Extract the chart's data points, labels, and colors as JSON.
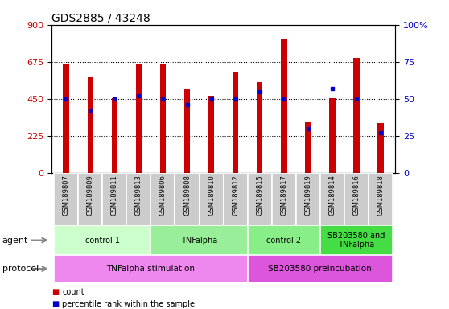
{
  "title": "GDS2885 / 43248",
  "samples": [
    "GSM189807",
    "GSM189809",
    "GSM189811",
    "GSM189813",
    "GSM189806",
    "GSM189808",
    "GSM189810",
    "GSM189812",
    "GSM189815",
    "GSM189817",
    "GSM189819",
    "GSM189814",
    "GSM189816",
    "GSM189818"
  ],
  "counts": [
    660,
    580,
    455,
    665,
    660,
    510,
    470,
    615,
    550,
    810,
    310,
    455,
    700,
    305
  ],
  "percentile_ranks": [
    50,
    42,
    50,
    52,
    50,
    46,
    50,
    50,
    55,
    50,
    30,
    57,
    50,
    27
  ],
  "ylim_left": [
    0,
    900
  ],
  "ylim_right": [
    0,
    100
  ],
  "yticks_left": [
    0,
    225,
    450,
    675,
    900
  ],
  "yticks_right": [
    0,
    25,
    50,
    75,
    100
  ],
  "bar_color": "#cc0000",
  "dot_color": "#0000cc",
  "agent_groups": [
    {
      "label": "control 1",
      "start": 0,
      "end": 3,
      "color": "#ccffcc"
    },
    {
      "label": "TNFalpha",
      "start": 4,
      "end": 7,
      "color": "#99ee99"
    },
    {
      "label": "control 2",
      "start": 8,
      "end": 10,
      "color": "#88ee88"
    },
    {
      "label": "SB203580 and\nTNFalpha",
      "start": 11,
      "end": 13,
      "color": "#44dd44"
    }
  ],
  "protocol_groups": [
    {
      "label": "TNFalpha stimulation",
      "start": 0,
      "end": 7,
      "color": "#ee88ee"
    },
    {
      "label": "SB203580 preincubation",
      "start": 8,
      "end": 13,
      "color": "#dd55dd"
    }
  ],
  "xlabel_bg": "#cccccc",
  "agent_row_label": "agent",
  "protocol_row_label": "protocol",
  "legend_count_color": "#cc0000",
  "legend_dot_color": "#0000cc",
  "bar_width": 0.25
}
